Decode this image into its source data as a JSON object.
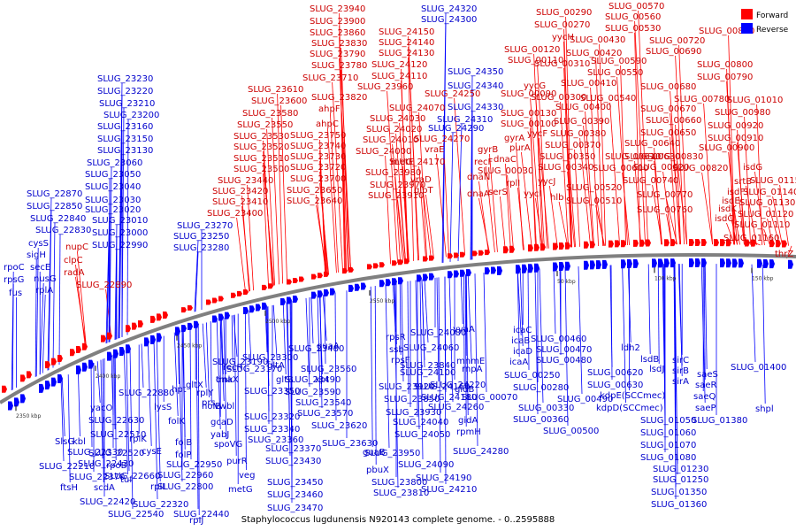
{
  "caption": "Staphylococcus lugdunensis N920143 complete genome. - 0..2595888",
  "legend": {
    "forward_label": "Forward",
    "reverse_label": "Reverse",
    "forward_color": "#ff0000",
    "reverse_color": "#0000ff"
  },
  "colors": {
    "forward_text": "#cc0000",
    "reverse_text": "#0000cc",
    "forward_line": "#ff0000",
    "reverse_line": "#0000ff",
    "backbone": "#808080"
  },
  "ticks": [
    "2350 kbp",
    "2400 kbp",
    "2450 kbp",
    "2500 kbp",
    "2550 kbp",
    "50 kbp",
    "100 kbp",
    "150 kbp"
  ],
  "forward_labels": [
    "SLUG_23940",
    "SLUG_23900",
    "SLUG_23860",
    "SLUG_23830",
    "SLUG_23790",
    "SLUG_23780",
    "SLUG_23710",
    "SLUG_23610",
    "SLUG_23600",
    "SLUG_23580",
    "SLUG_23550",
    "SLUG_23530",
    "SLUG_23520",
    "SLUG_23510",
    "SLUG_23500",
    "SLUG_23440",
    "SLUG_23420",
    "SLUG_23410",
    "SLUG_23400",
    "SLUG_23820",
    "SLUG_23960",
    "SLUG_23750",
    "SLUG_23740",
    "SLUG_23730",
    "SLUG_23720",
    "SLUG_23700",
    "SLUG_23650",
    "SLUG_23640",
    "SLUG_23980",
    "SLUG_23970",
    "SLUG_23910",
    "ahpF",
    "ahpC",
    "SLUG_24150",
    "SLUG_24140",
    "SLUG_24130",
    "SLUG_24120",
    "SLUG_24110",
    "SLUG_24070",
    "SLUG_24030",
    "SLUG_24020",
    "SLUG_24010",
    "SLUG_24000",
    "metE",
    "SLUG_24170",
    "glpT",
    "vraD",
    "vraE",
    "SLUG_24250",
    "SLUG_24270",
    "SLUG_00290",
    "SLUG_00270",
    "yycH",
    "SLUG_00120",
    "SLUG_00110",
    "SLUG_00090",
    "SLUG_00130",
    "SLUG_00100",
    "gyrA",
    "gyrB",
    "recF",
    "dnaN",
    "dnaA",
    "serS",
    "SLUG_00030",
    "SLUG_00310",
    "SLUG_00300",
    "yycG",
    "yycF",
    "purA",
    "dnaC",
    "rplI",
    "yycI",
    "yycJ",
    "hlb",
    "SLUG_00570",
    "SLUG_00560",
    "SLUG_00530",
    "SLUG_00430",
    "SLUG_00420",
    "SLUG_00410",
    "SLUG_00400",
    "SLUG_00390",
    "SLUG_00380",
    "SLUG_00370",
    "SLUG_00350",
    "SLUG_00340",
    "SLUG_00520",
    "SLUG_00510",
    "SLUG_00540",
    "SLUG_00550",
    "SLUG_00590",
    "SLUG_00610",
    "SLUG_00600",
    "SLUG_00720",
    "SLUG_00690",
    "SLUG_00680",
    "SLUG_00670",
    "SLUG_00660",
    "SLUG_00650",
    "SLUG_00640",
    "SLUG_00630",
    "SLUG_00620",
    "SLUG_00740",
    "SLUG_00770",
    "SLUG_00760",
    "SLUG_00810",
    "SLUG_00800",
    "SLUG_00790",
    "SLUG_00780",
    "SLUG_00830",
    "SLUG_00820",
    "SLUG_01010",
    "SLUG_00980",
    "SLUG_00920",
    "SLUG_00910",
    "SLUG_00900",
    "isdG",
    "srtB",
    "isdF",
    "isdE",
    "isdK",
    "isdC",
    "SLUG_01150",
    "SLUG_01140",
    "SLUG_01130",
    "SLUG_01120",
    "SLUG_01110",
    "SLUG_01160",
    "thrZ",
    "nupC",
    "clpC",
    "radA",
    "SLUG_22890"
  ],
  "reverse_labels": [
    "SLUG_23230",
    "SLUG_23220",
    "SLUG_23210",
    "SLUG_23200",
    "SLUG_23160",
    "SLUG_23150",
    "SLUG_23130",
    "SLUG_23060",
    "SLUG_23050",
    "SLUG_23040",
    "SLUG_23030",
    "SLUG_23020",
    "SLUG_23010",
    "SLUG_23000",
    "SLUG_22990",
    "SLUG_22870",
    "SLUG_22850",
    "SLUG_22840",
    "SLUG_22830",
    "SLUG_23270",
    "SLUG_23250",
    "SLUG_23280",
    "cysS",
    "sigH",
    "secE",
    "nusG",
    "rplA",
    "rpoC",
    "rpsG",
    "fus",
    "SLUG_24320",
    "SLUG_24300",
    "SLUG_24350",
    "SLUG_24340",
    "SLUG_24330",
    "SLUG_24310",
    "SLUG_24290",
    "SLUG_22880",
    "hpt",
    "lysS",
    "folK",
    "folB",
    "folP",
    "SLUG_22950",
    "SLUG_22960",
    "SLUG_22800",
    "yacO",
    "SLUG_22630",
    "SLUG_22510",
    "rplK",
    "rplL",
    "SlsG",
    "kbl",
    "SLUG_22330",
    "SLUG_22520",
    "cysE",
    "SLUG_22210",
    "SLUG_22430",
    "rpoB",
    "SLUG_22370",
    "tuf",
    "SLUG_22660",
    "ftsH",
    "scdA",
    "SLUG_22420",
    "SLUG_22320",
    "SLUG_22540",
    "SLUG_22440",
    "rpIJ",
    "gltX",
    "rplY",
    "prs",
    "tmk",
    "holB",
    "gcaD",
    "yabJ",
    "spoVG",
    "purR",
    "veg",
    "metG",
    "SLUG_23190",
    "SLUG_23170",
    "SLUG_23300",
    "recR",
    "dnaX",
    "vwbl",
    "SLUG_23350",
    "SLUG_23320",
    "SLUG_23340",
    "SLUG_23360",
    "SLUG_23370",
    "SLUG_23430",
    "SLUG_23450",
    "SLUG_23460",
    "SLUG_23470",
    "gltA",
    "gltB",
    "SLUG_23480",
    "SLUG_23560",
    "SLUG_23490",
    "SLUG_23590",
    "SLUG_23540",
    "SLUG_23570",
    "SLUG_23620",
    "SLUG_23630",
    "guaA",
    "xpt",
    "guaB",
    "pbuX",
    "SLUG_23800",
    "SLUG_23810",
    "SLUG_23840",
    "SLUG_23920",
    "SLUG_23850",
    "SLUG_23930",
    "SLUG_23950",
    "rpsR",
    "ssb",
    "rpsF",
    "SLUG_24080",
    "SLUG_24060",
    "SLUG_24100",
    "SLUG_24160",
    "SLUG_24180",
    "SLUG_24040",
    "SLUG_24050",
    "SLUG_24090",
    "SLUG_24190",
    "SLUG_24210",
    "SLUG_24220",
    "SLUG_24260",
    "SLUG_24280",
    "yyaA",
    "gidB",
    "mnmE",
    "rnpA",
    "SLUG_00070",
    "gidA",
    "rpmH",
    "icaC",
    "icaB",
    "icaD",
    "icaA",
    "SLUG_00250",
    "SLUG_00280",
    "SLUG_00330",
    "SLUG_00360",
    "SLUG_00460",
    "SLUG_00470",
    "SLUG_00480",
    "SLUG_00490",
    "SLUG_00500",
    "SLUG_00620",
    "SLUG_00630",
    "kdpE(SCCmec)",
    "kdpD(SCCmec)",
    "ldh2",
    "lsdB",
    "lsdJ",
    "sirC",
    "sirB",
    "sirA",
    "saeS",
    "saeR",
    "saeQ",
    "saeP",
    "SLUG_01050",
    "SLUG_01060",
    "SLUG_01070",
    "SLUG_01080",
    "SLUG_01230",
    "SLUG_01250",
    "SLUG_01350",
    "SLUG_01360",
    "SLUG_01380",
    "SLUG_01400",
    "shpl"
  ]
}
